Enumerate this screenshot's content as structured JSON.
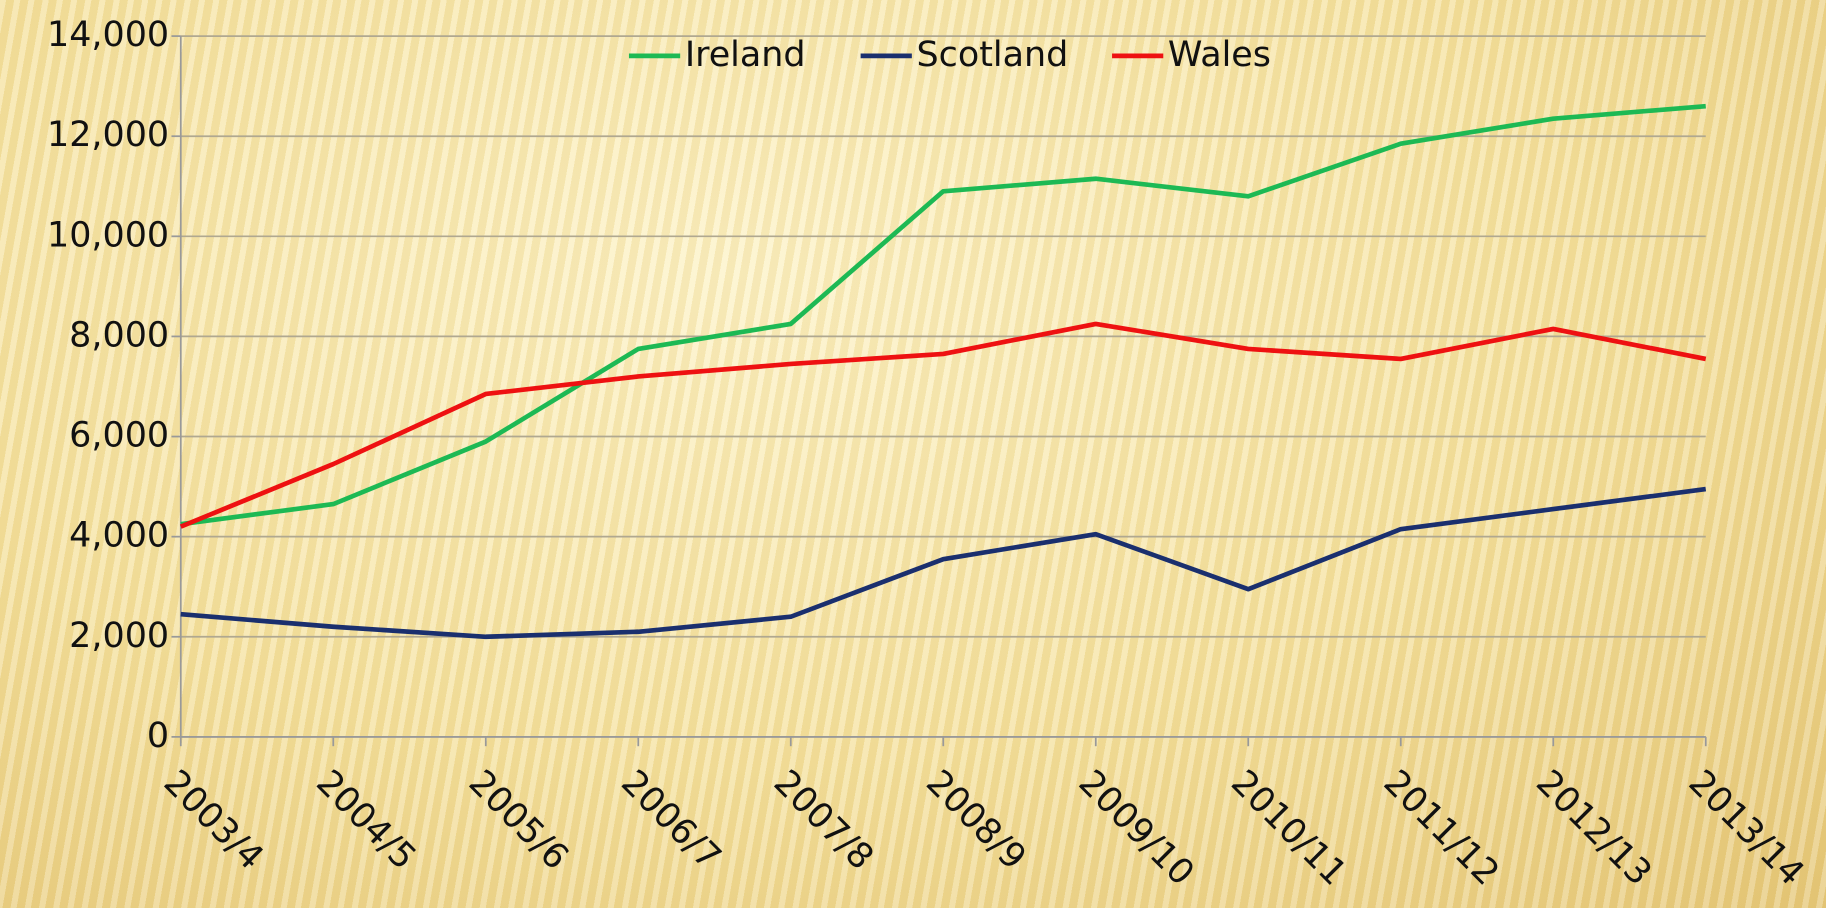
{
  "chart_data": {
    "type": "line",
    "categories": [
      "2003/4",
      "2004/5",
      "2005/6",
      "2006/7",
      "2007/8",
      "2008/9",
      "2009/10",
      "2010/11",
      "2011/12",
      "2012/13",
      "2013/14"
    ],
    "series": [
      {
        "name": "Ireland",
        "color": "#1db954",
        "values": [
          4250,
          4650,
          5900,
          7750,
          8250,
          10900,
          11150,
          10800,
          11850,
          12350,
          12600
        ]
      },
      {
        "name": "Scotland",
        "color": "#1a2f6e",
        "values": [
          2450,
          2200,
          2000,
          2100,
          2400,
          3550,
          4050,
          2950,
          4150,
          4550,
          4950
        ]
      },
      {
        "name": "Wales",
        "color": "#ee1111",
        "values": [
          4200,
          5450,
          6850,
          7200,
          7450,
          7650,
          8250,
          7750,
          7550,
          8150,
          7550
        ]
      }
    ],
    "ylim": [
      0,
      14000
    ],
    "yticks": [
      0,
      {
        "value": 2000,
        "label": "2,000"
      },
      {
        "value": 4000,
        "label": "4,000"
      },
      {
        "value": 6000,
        "label": "6,000"
      },
      {
        "value": 8000,
        "label": "8,000"
      },
      {
        "value": 10000,
        "label": "10,000"
      },
      {
        "value": 12000,
        "label": "12,000"
      },
      {
        "value": 14000,
        "label": "14,000"
      }
    ],
    "grid": true,
    "legend": "top"
  }
}
